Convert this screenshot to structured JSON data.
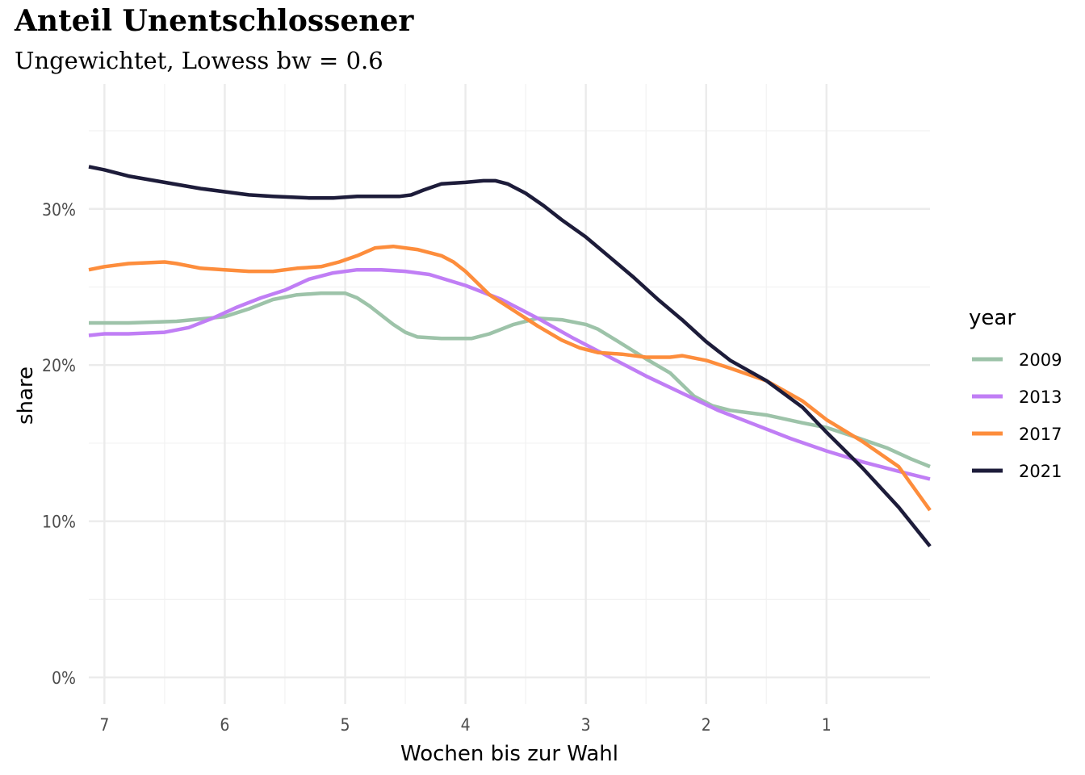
{
  "chart_data": {
    "type": "line",
    "title": "Anteil Unentschlossener",
    "subtitle": "Ungewichtet, Lowess bw = 0.6",
    "xlabel": "Wochen bis zur Wahl",
    "ylabel": "share",
    "x_reversed": true,
    "xlim": [
      7.13,
      0.14
    ],
    "ylim": [
      -0.017,
      0.38
    ],
    "x_ticks": [
      7,
      6,
      5,
      4,
      3,
      2,
      1
    ],
    "x_tick_labels": [
      "7",
      "6",
      "5",
      "4",
      "3",
      "2",
      "1"
    ],
    "y_ticks": [
      0,
      0.1,
      0.2,
      0.3
    ],
    "y_tick_labels": [
      "0%",
      "10%",
      "20%",
      "30%"
    ],
    "grid": true,
    "legend": {
      "title": "year",
      "position": "right"
    },
    "series": [
      {
        "name": "2009",
        "color": "#9dc3a9",
        "points": [
          [
            7.13,
            0.227
          ],
          [
            6.8,
            0.227
          ],
          [
            6.4,
            0.228
          ],
          [
            6.0,
            0.231
          ],
          [
            5.8,
            0.236
          ],
          [
            5.6,
            0.242
          ],
          [
            5.4,
            0.245
          ],
          [
            5.2,
            0.246
          ],
          [
            5.0,
            0.246
          ],
          [
            4.9,
            0.243
          ],
          [
            4.8,
            0.238
          ],
          [
            4.6,
            0.226
          ],
          [
            4.5,
            0.221
          ],
          [
            4.4,
            0.218
          ],
          [
            4.2,
            0.217
          ],
          [
            4.0,
            0.217
          ],
          [
            3.95,
            0.217
          ],
          [
            3.8,
            0.22
          ],
          [
            3.6,
            0.226
          ],
          [
            3.4,
            0.23
          ],
          [
            3.2,
            0.229
          ],
          [
            3.0,
            0.226
          ],
          [
            2.9,
            0.223
          ],
          [
            2.75,
            0.216
          ],
          [
            2.5,
            0.204
          ],
          [
            2.3,
            0.195
          ],
          [
            2.1,
            0.18
          ],
          [
            1.95,
            0.174
          ],
          [
            1.8,
            0.171
          ],
          [
            1.5,
            0.168
          ],
          [
            1.2,
            0.163
          ],
          [
            1.0,
            0.16
          ],
          [
            0.8,
            0.155
          ],
          [
            0.5,
            0.147
          ],
          [
            0.3,
            0.14
          ],
          [
            0.14,
            0.135
          ]
        ]
      },
      {
        "name": "2013",
        "color": "#c07ef5",
        "points": [
          [
            7.13,
            0.219
          ],
          [
            7.0,
            0.22
          ],
          [
            6.8,
            0.22
          ],
          [
            6.5,
            0.221
          ],
          [
            6.3,
            0.224
          ],
          [
            6.1,
            0.23
          ],
          [
            5.9,
            0.237
          ],
          [
            5.7,
            0.243
          ],
          [
            5.5,
            0.248
          ],
          [
            5.3,
            0.255
          ],
          [
            5.1,
            0.259
          ],
          [
            4.9,
            0.261
          ],
          [
            4.7,
            0.261
          ],
          [
            4.5,
            0.26
          ],
          [
            4.3,
            0.258
          ],
          [
            4.0,
            0.251
          ],
          [
            3.7,
            0.242
          ],
          [
            3.4,
            0.23
          ],
          [
            3.1,
            0.217
          ],
          [
            2.8,
            0.205
          ],
          [
            2.5,
            0.193
          ],
          [
            2.2,
            0.182
          ],
          [
            1.9,
            0.171
          ],
          [
            1.6,
            0.162
          ],
          [
            1.3,
            0.153
          ],
          [
            1.0,
            0.145
          ],
          [
            0.7,
            0.138
          ],
          [
            0.4,
            0.132
          ],
          [
            0.14,
            0.127
          ]
        ]
      },
      {
        "name": "2017",
        "color": "#fd8d3c",
        "points": [
          [
            7.13,
            0.261
          ],
          [
            7.0,
            0.263
          ],
          [
            6.8,
            0.265
          ],
          [
            6.5,
            0.266
          ],
          [
            6.4,
            0.265
          ],
          [
            6.2,
            0.262
          ],
          [
            6.0,
            0.261
          ],
          [
            5.8,
            0.26
          ],
          [
            5.6,
            0.26
          ],
          [
            5.4,
            0.262
          ],
          [
            5.2,
            0.263
          ],
          [
            5.05,
            0.266
          ],
          [
            4.9,
            0.27
          ],
          [
            4.75,
            0.275
          ],
          [
            4.6,
            0.276
          ],
          [
            4.4,
            0.274
          ],
          [
            4.2,
            0.27
          ],
          [
            4.1,
            0.266
          ],
          [
            4.0,
            0.26
          ],
          [
            3.8,
            0.245
          ],
          [
            3.6,
            0.235
          ],
          [
            3.4,
            0.225
          ],
          [
            3.2,
            0.216
          ],
          [
            3.05,
            0.211
          ],
          [
            2.9,
            0.208
          ],
          [
            2.7,
            0.207
          ],
          [
            2.5,
            0.205
          ],
          [
            2.3,
            0.205
          ],
          [
            2.2,
            0.206
          ],
          [
            2.0,
            0.203
          ],
          [
            1.8,
            0.198
          ],
          [
            1.5,
            0.19
          ],
          [
            1.2,
            0.177
          ],
          [
            1.0,
            0.165
          ],
          [
            0.7,
            0.151
          ],
          [
            0.4,
            0.135
          ],
          [
            0.14,
            0.107
          ]
        ]
      },
      {
        "name": "2021",
        "color": "#1d1c3a",
        "points": [
          [
            7.13,
            0.327
          ],
          [
            7.0,
            0.325
          ],
          [
            6.8,
            0.321
          ],
          [
            6.5,
            0.317
          ],
          [
            6.2,
            0.313
          ],
          [
            6.0,
            0.311
          ],
          [
            5.8,
            0.309
          ],
          [
            5.6,
            0.308
          ],
          [
            5.3,
            0.307
          ],
          [
            5.1,
            0.307
          ],
          [
            4.9,
            0.308
          ],
          [
            4.7,
            0.308
          ],
          [
            4.55,
            0.308
          ],
          [
            4.45,
            0.309
          ],
          [
            4.35,
            0.312
          ],
          [
            4.2,
            0.316
          ],
          [
            4.0,
            0.317
          ],
          [
            3.85,
            0.318
          ],
          [
            3.75,
            0.318
          ],
          [
            3.65,
            0.316
          ],
          [
            3.5,
            0.31
          ],
          [
            3.35,
            0.302
          ],
          [
            3.2,
            0.293
          ],
          [
            3.0,
            0.282
          ],
          [
            2.8,
            0.269
          ],
          [
            2.6,
            0.256
          ],
          [
            2.4,
            0.242
          ],
          [
            2.2,
            0.229
          ],
          [
            2.0,
            0.215
          ],
          [
            1.8,
            0.203
          ],
          [
            1.5,
            0.19
          ],
          [
            1.2,
            0.173
          ],
          [
            1.0,
            0.157
          ],
          [
            0.7,
            0.134
          ],
          [
            0.4,
            0.109
          ],
          [
            0.14,
            0.084
          ]
        ]
      }
    ]
  }
}
